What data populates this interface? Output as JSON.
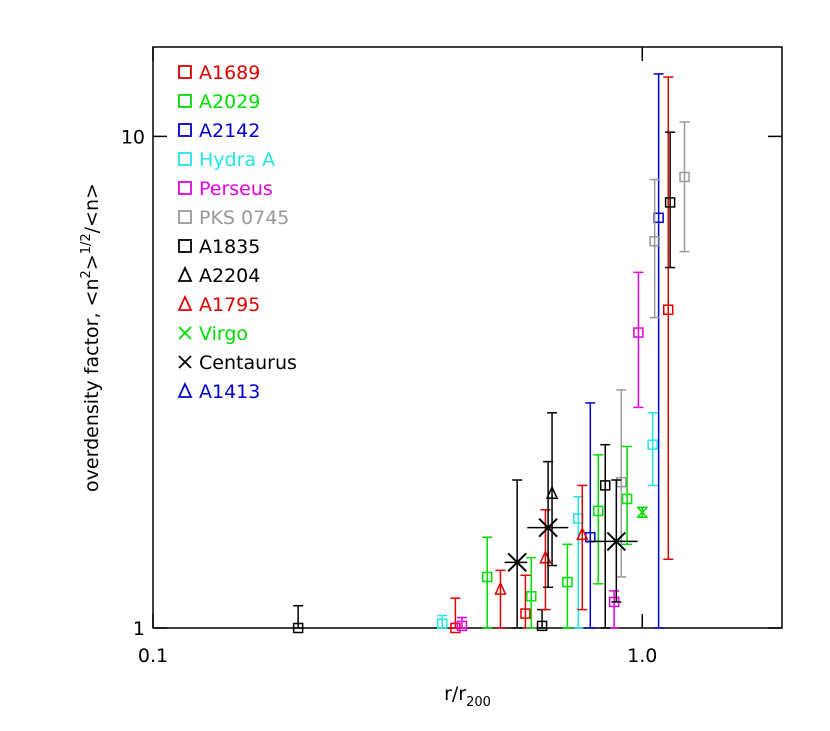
{
  "chart_data": {
    "type": "errorbar-scatter",
    "xlabel": {
      "text": "r/r",
      "sub": "200"
    },
    "ylabel": [
      {
        "text": "overdensity factor, <n"
      },
      {
        "text": "2",
        "sup": true
      },
      {
        "text": ">"
      },
      {
        "text": "1/2",
        "sup": true
      },
      {
        "text": "/<n>"
      }
    ],
    "xscale": "log",
    "yscale": "log",
    "xlim": [
      0.1,
      1.93
    ],
    "ylim": [
      1,
      15.2
    ],
    "xticks": [
      0.1,
      {
        "value": 1,
        "label": "1.0"
      }
    ],
    "yticks": [
      1,
      10
    ],
    "legend": "upper left",
    "series": [
      {
        "name": "A1689",
        "color": "#e00000",
        "marker": "square",
        "x": [
          0.415,
          0.577,
          1.13
        ],
        "values": [
          1.0,
          1.07,
          4.44
        ],
        "lower": [
          1.0,
          1.0,
          1.38
        ],
        "upper": [
          1.15,
          1.28,
          13.2
        ]
      },
      {
        "name": "A2029",
        "color": "#00dd00",
        "marker": "square",
        "x": [
          0.482,
          0.593,
          0.703,
          0.813,
          0.931
        ],
        "values": [
          1.27,
          1.16,
          1.24,
          1.73,
          1.83
        ],
        "lower": [
          1.0,
          1.0,
          1.0,
          1.23,
          1.48
        ],
        "upper": [
          1.53,
          1.39,
          1.48,
          2.25,
          2.34
        ]
      },
      {
        "name": "A2142",
        "color": "#0000d0",
        "marker": "square",
        "x": [
          0.783,
          1.08
        ],
        "values": [
          1.53,
          6.83
        ],
        "lower": [
          1.0,
          1.0
        ],
        "upper": [
          2.87,
          13.4
        ]
      },
      {
        "name": "Hydra A",
        "color": "#22e6e6",
        "marker": "square",
        "x": [
          0.39,
          0.74,
          1.05
        ],
        "values": [
          1.02,
          1.67,
          2.36
        ],
        "lower": [
          1.0,
          1.0,
          1.95
        ],
        "upper": [
          1.06,
          1.85,
          2.74
        ]
      },
      {
        "name": "Perseus",
        "color": "#e000e0",
        "marker": "square",
        "x": [
          0.428,
          0.876,
          0.982
        ],
        "values": [
          1.01,
          1.13,
          3.99
        ],
        "lower": [
          1.0,
          1.0,
          2.81
        ],
        "upper": [
          1.05,
          1.19,
          5.29
        ]
      },
      {
        "name": "PKS 0745",
        "color": "#999999",
        "marker": "square",
        "x": [
          0.906,
          1.06,
          1.22
        ],
        "values": [
          1.98,
          6.12,
          8.27
        ],
        "lower": [
          1.27,
          4.28,
          5.83
        ],
        "upper": [
          3.05,
          8.17,
          10.7
        ]
      },
      {
        "name": "A1835",
        "color": "#000000",
        "marker": "square",
        "x": [
          0.198,
          0.624,
          0.84,
          1.14
        ],
        "values": [
          1.0,
          1.01,
          1.95,
          7.34
        ],
        "lower": [
          1.0,
          1.0,
          1.0,
          5.41
        ],
        "upper": [
          1.11,
          1.09,
          2.36,
          10.2
        ]
      },
      {
        "name": "A2204",
        "color": "#000000",
        "marker": "triangle",
        "x": [
          0.654
        ],
        "values": [
          1.88
        ],
        "lower": [
          1.34
        ],
        "upper": [
          2.74
        ]
      },
      {
        "name": "A1795",
        "color": "#e00000",
        "marker": "triangle",
        "x": [
          0.513,
          0.634,
          0.754
        ],
        "values": [
          1.2,
          1.39,
          1.55
        ],
        "lower": [
          1.0,
          1.09,
          1.09
        ],
        "upper": [
          1.31,
          1.74,
          1.95
        ]
      },
      {
        "name": "Virgo",
        "color": "#00dd00",
        "marker": "cross",
        "x": [
          1.0
        ],
        "values": [
          1.72
        ],
        "lower": [
          1.68
        ],
        "upper": [
          1.76
        ]
      },
      {
        "name": "Centaurus",
        "color": "#000000",
        "marker": "bigcross",
        "x": [
          0.555,
          0.642,
          0.885
        ],
        "values": [
          1.36,
          1.6,
          1.5
        ],
        "lower": [
          1.0,
          1.21,
          1.13
        ],
        "upper": [
          2.0,
          2.18,
          2.0
        ],
        "xlower": [
          0.523,
          0.582,
          0.775
        ],
        "xupper": [
          0.582,
          0.706,
          0.978
        ]
      },
      {
        "name": "A1413",
        "color": "#0000d0",
        "marker": "triangle",
        "x": [],
        "values": [],
        "lower": [],
        "upper": []
      }
    ]
  }
}
